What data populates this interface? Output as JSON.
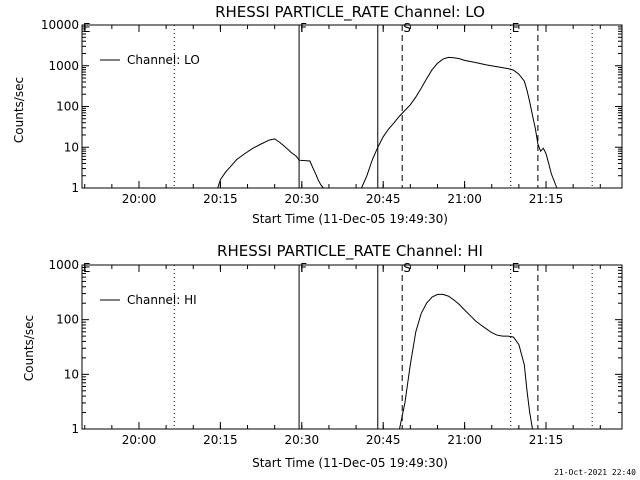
{
  "footer": {
    "timestamp": "21-Oct-2021 22:40"
  },
  "chart_data": [
    {
      "type": "line",
      "title": "RHESSI PARTICLE_RATE Channel: LO",
      "xlabel": "Start Time (11-Dec-05 19:49:30)",
      "ylabel": "Counts/sec",
      "yscale": "log",
      "ylim": [
        1,
        10000
      ],
      "xlim": [
        "19:49:30",
        "21:29:00"
      ],
      "y_ticks": [
        {
          "value": 1,
          "label": "1"
        },
        {
          "value": 10,
          "label": "10"
        },
        {
          "value": 100,
          "label": "100"
        },
        {
          "value": 1000,
          "label": "1000"
        },
        {
          "value": 10000,
          "label": "10000"
        }
      ],
      "x_ticks": [
        {
          "value": "20:00",
          "label": "20:00"
        },
        {
          "value": "20:15",
          "label": "20:15"
        },
        {
          "value": "20:30",
          "label": "20:30"
        },
        {
          "value": "20:45",
          "label": "20:45"
        },
        {
          "value": "21:00",
          "label": "21:00"
        },
        {
          "value": "21:15",
          "label": "21:15"
        }
      ],
      "legend": {
        "position": "top-left",
        "entries": [
          "Channel: LO"
        ]
      },
      "markers": [
        {
          "time": "19:49:30",
          "style": "dotted",
          "label": "E"
        },
        {
          "time": "20:06:30",
          "style": "dotted",
          "label": ""
        },
        {
          "time": "20:29:30",
          "style": "solid",
          "label": "F"
        },
        {
          "time": "20:44:00",
          "style": "solid",
          "label": ""
        },
        {
          "time": "20:48:30",
          "style": "dashed",
          "label": "S"
        },
        {
          "time": "21:08:30",
          "style": "dotted",
          "label": "E"
        },
        {
          "time": "21:13:30",
          "style": "dashed",
          "label": ""
        },
        {
          "time": "21:23:30",
          "style": "dotted",
          "label": ""
        }
      ],
      "series": [
        {
          "name": "Channel: LO",
          "segments": [
            [
              [
                "20:14:30",
                1
              ],
              [
                "20:15:00",
                1.6
              ],
              [
                "20:16:00",
                2.5
              ],
              [
                "20:17:00",
                3.5
              ],
              [
                "20:18:00",
                5
              ],
              [
                "20:19:30",
                7
              ],
              [
                "20:21:00",
                9.5
              ],
              [
                "20:22:30",
                12
              ],
              [
                "20:24:00",
                15
              ],
              [
                "20:25:00",
                16
              ],
              [
                "20:26:00",
                13
              ],
              [
                "20:27:00",
                10
              ],
              [
                "20:28:00",
                7.5
              ],
              [
                "20:29:00",
                6
              ],
              [
                "20:29:30",
                4.8
              ],
              [
                "20:31:30",
                4.6
              ],
              [
                "20:32:00",
                3.2
              ],
              [
                "20:32:30",
                2.3
              ],
              [
                "20:33:00",
                1.6
              ],
              [
                "20:33:30",
                1.2
              ],
              [
                "20:34:00",
                1
              ]
            ],
            [
              [
                "20:41:00",
                1
              ],
              [
                "20:42:00",
                2
              ],
              [
                "20:43:00",
                5
              ],
              [
                "20:44:00",
                10
              ],
              [
                "20:45:00",
                18
              ],
              [
                "20:46:00",
                28
              ],
              [
                "20:47:00",
                40
              ],
              [
                "20:48:00",
                58
              ],
              [
                "20:49:00",
                80
              ],
              [
                "20:50:00",
                110
              ],
              [
                "20:51:00",
                170
              ],
              [
                "20:52:00",
                280
              ],
              [
                "20:53:00",
                480
              ],
              [
                "20:54:00",
                800
              ],
              [
                "20:55:00",
                1150
              ],
              [
                "20:56:00",
                1450
              ],
              [
                "20:57:00",
                1600
              ],
              [
                "20:58:00",
                1580
              ],
              [
                "20:59:00",
                1500
              ],
              [
                "21:00:00",
                1350
              ],
              [
                "21:02:00",
                1200
              ],
              [
                "21:04:00",
                1050
              ],
              [
                "21:06:00",
                950
              ],
              [
                "21:08:00",
                850
              ],
              [
                "21:09:00",
                780
              ],
              [
                "21:10:00",
                620
              ],
              [
                "21:11:00",
                420
              ],
              [
                "21:11:30",
                250
              ],
              [
                "21:12:00",
                130
              ],
              [
                "21:12:30",
                60
              ],
              [
                "21:13:00",
                30
              ],
              [
                "21:13:30",
                12
              ],
              [
                "21:14:00",
                8
              ],
              [
                "21:14:30",
                9.5
              ],
              [
                "21:15:00",
                7
              ],
              [
                "21:15:30",
                4
              ],
              [
                "21:16:00",
                2.2
              ],
              [
                "21:17:00",
                1
              ]
            ]
          ]
        }
      ]
    },
    {
      "type": "line",
      "title": "RHESSI PARTICLE_RATE Channel: HI",
      "xlabel": "Start Time (11-Dec-05 19:49:30)",
      "ylabel": "Counts/sec",
      "yscale": "log",
      "ylim": [
        1,
        1000
      ],
      "xlim": [
        "19:49:30",
        "21:29:00"
      ],
      "y_ticks": [
        {
          "value": 1,
          "label": "1"
        },
        {
          "value": 10,
          "label": "10"
        },
        {
          "value": 100,
          "label": "100"
        },
        {
          "value": 1000,
          "label": "1000"
        }
      ],
      "x_ticks": [
        {
          "value": "20:00",
          "label": "20:00"
        },
        {
          "value": "20:15",
          "label": "20:15"
        },
        {
          "value": "20:30",
          "label": "20:30"
        },
        {
          "value": "20:45",
          "label": "20:45"
        },
        {
          "value": "21:00",
          "label": "21:00"
        },
        {
          "value": "21:15",
          "label": "21:15"
        }
      ],
      "legend": {
        "position": "top-left",
        "entries": [
          "Channel: HI"
        ]
      },
      "markers": [
        {
          "time": "19:49:30",
          "style": "dotted",
          "label": "E"
        },
        {
          "time": "20:06:30",
          "style": "dotted",
          "label": ""
        },
        {
          "time": "20:29:30",
          "style": "solid",
          "label": "F"
        },
        {
          "time": "20:44:00",
          "style": "solid",
          "label": ""
        },
        {
          "time": "20:48:30",
          "style": "dashed",
          "label": "S"
        },
        {
          "time": "21:08:30",
          "style": "dotted",
          "label": "E"
        },
        {
          "time": "21:13:30",
          "style": "dashed",
          "label": ""
        },
        {
          "time": "21:23:30",
          "style": "dotted",
          "label": ""
        }
      ],
      "series": [
        {
          "name": "Channel: HI",
          "segments": [
            [
              [
                "20:48:00",
                1
              ],
              [
                "20:49:00",
                3
              ],
              [
                "20:50:00",
                15
              ],
              [
                "20:51:00",
                60
              ],
              [
                "20:52:00",
                130
              ],
              [
                "20:53:00",
                200
              ],
              [
                "20:54:00",
                260
              ],
              [
                "20:55:00",
                290
              ],
              [
                "20:56:00",
                290
              ],
              [
                "20:57:00",
                270
              ],
              [
                "20:58:00",
                230
              ],
              [
                "20:59:00",
                190
              ],
              [
                "21:00:00",
                150
              ],
              [
                "21:01:00",
                120
              ],
              [
                "21:02:00",
                95
              ],
              [
                "21:03:00",
                80
              ],
              [
                "21:04:00",
                68
              ],
              [
                "21:05:00",
                58
              ],
              [
                "21:06:00",
                52
              ],
              [
                "21:07:00",
                50
              ],
              [
                "21:08:00",
                50
              ],
              [
                "21:09:00",
                48
              ],
              [
                "21:10:00",
                35
              ],
              [
                "21:11:00",
                15
              ],
              [
                "21:11:30",
                5
              ],
              [
                "21:12:00",
                2
              ],
              [
                "21:12:30",
                1
              ]
            ]
          ]
        }
      ]
    }
  ]
}
